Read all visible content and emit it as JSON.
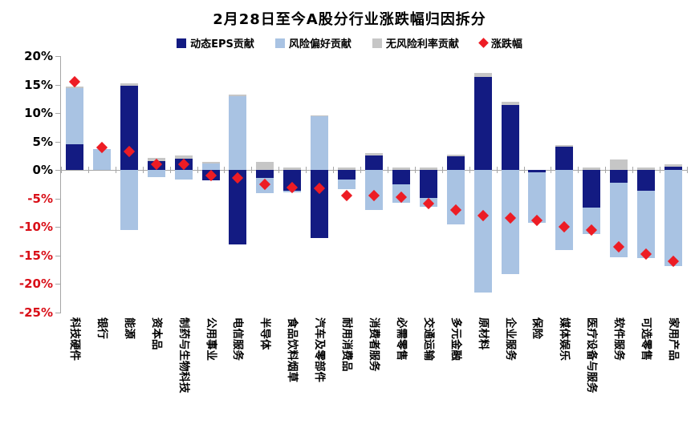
{
  "page": {
    "background": "#ffffff"
  },
  "chart_data": {
    "type": "bar",
    "variant": "stacked-bars-with-diamond-markers",
    "title": "2月28日至今A股分行业涨跌幅归因拆分",
    "legend_position": "top",
    "grid": "off",
    "y_axis": {
      "unit": "%",
      "max": 20,
      "min": -25,
      "step": 5,
      "tick_labels": [
        "20%",
        "15%",
        "10%",
        "5%",
        "0%",
        "-5%",
        "-10%",
        "-15%",
        "-20%",
        "-25%"
      ]
    },
    "categories": [
      "科技硬件",
      "银行",
      "能源",
      "资本品",
      "制药与生物科技",
      "公用事业",
      "电信服务",
      "半导体",
      "食品饮料烟草",
      "汽车及零部件",
      "耐用消费品",
      "消费者服务",
      "必需零售",
      "交通运输",
      "多元金融",
      "原材料",
      "企业服务",
      "保险",
      "媒体娱乐",
      "医疗设备与服务",
      "软件服务",
      "可选零售",
      "家用产品"
    ],
    "series": [
      {
        "name": "动态EPS贡献",
        "color": "#131b82",
        "values": [
          4.6,
          0,
          14.8,
          1.6,
          2.0,
          -1.8,
          -13.0,
          -1.4,
          -3.6,
          -11.9,
          -1.7,
          2.5,
          -2.5,
          -4.9,
          2.4,
          16.4,
          11.4,
          -0.4,
          4.1,
          -6.6,
          -2.2,
          -3.6,
          0.6
        ]
      },
      {
        "name": "风险偏好贡献",
        "color": "#a9c3e3",
        "values": [
          9.8,
          3.7,
          -10.5,
          -1.2,
          -1.6,
          1.2,
          13.0,
          -2.6,
          -0.3,
          9.4,
          -1.7,
          -7.0,
          -3.3,
          -1.6,
          -9.6,
          -21.5,
          -18.2,
          -8.9,
          -14.0,
          -4.6,
          -13.1,
          -11.9,
          -16.9
        ]
      },
      {
        "name": "无风险利率贡献",
        "color": "#c6c6c6",
        "values": [
          0.3,
          0,
          0.4,
          0.6,
          0.6,
          0.3,
          0.3,
          1.4,
          0.5,
          0.2,
          0.4,
          0.5,
          0.5,
          0.4,
          0.3,
          0.6,
          0.6,
          0,
          0.3,
          0.5,
          1.9,
          0.5,
          0.4
        ]
      }
    ],
    "marker_series": {
      "name": "涨跌幅",
      "shape": "diamond",
      "color": "#ed1c24",
      "values": [
        15.5,
        4.0,
        3.2,
        1.0,
        1.0,
        -0.9,
        -1.4,
        -2.5,
        -3.1,
        -3.2,
        -4.4,
        -4.5,
        -4.7,
        -5.9,
        -7.0,
        -8.0,
        -8.4,
        -8.8,
        -9.9,
        -10.5,
        -13.4,
        -14.7,
        -16.0
      ]
    },
    "colors": {
      "axis": "#a6a6a6",
      "tick_label_positive": "#000000",
      "tick_label_negative": "#d90f18"
    }
  }
}
